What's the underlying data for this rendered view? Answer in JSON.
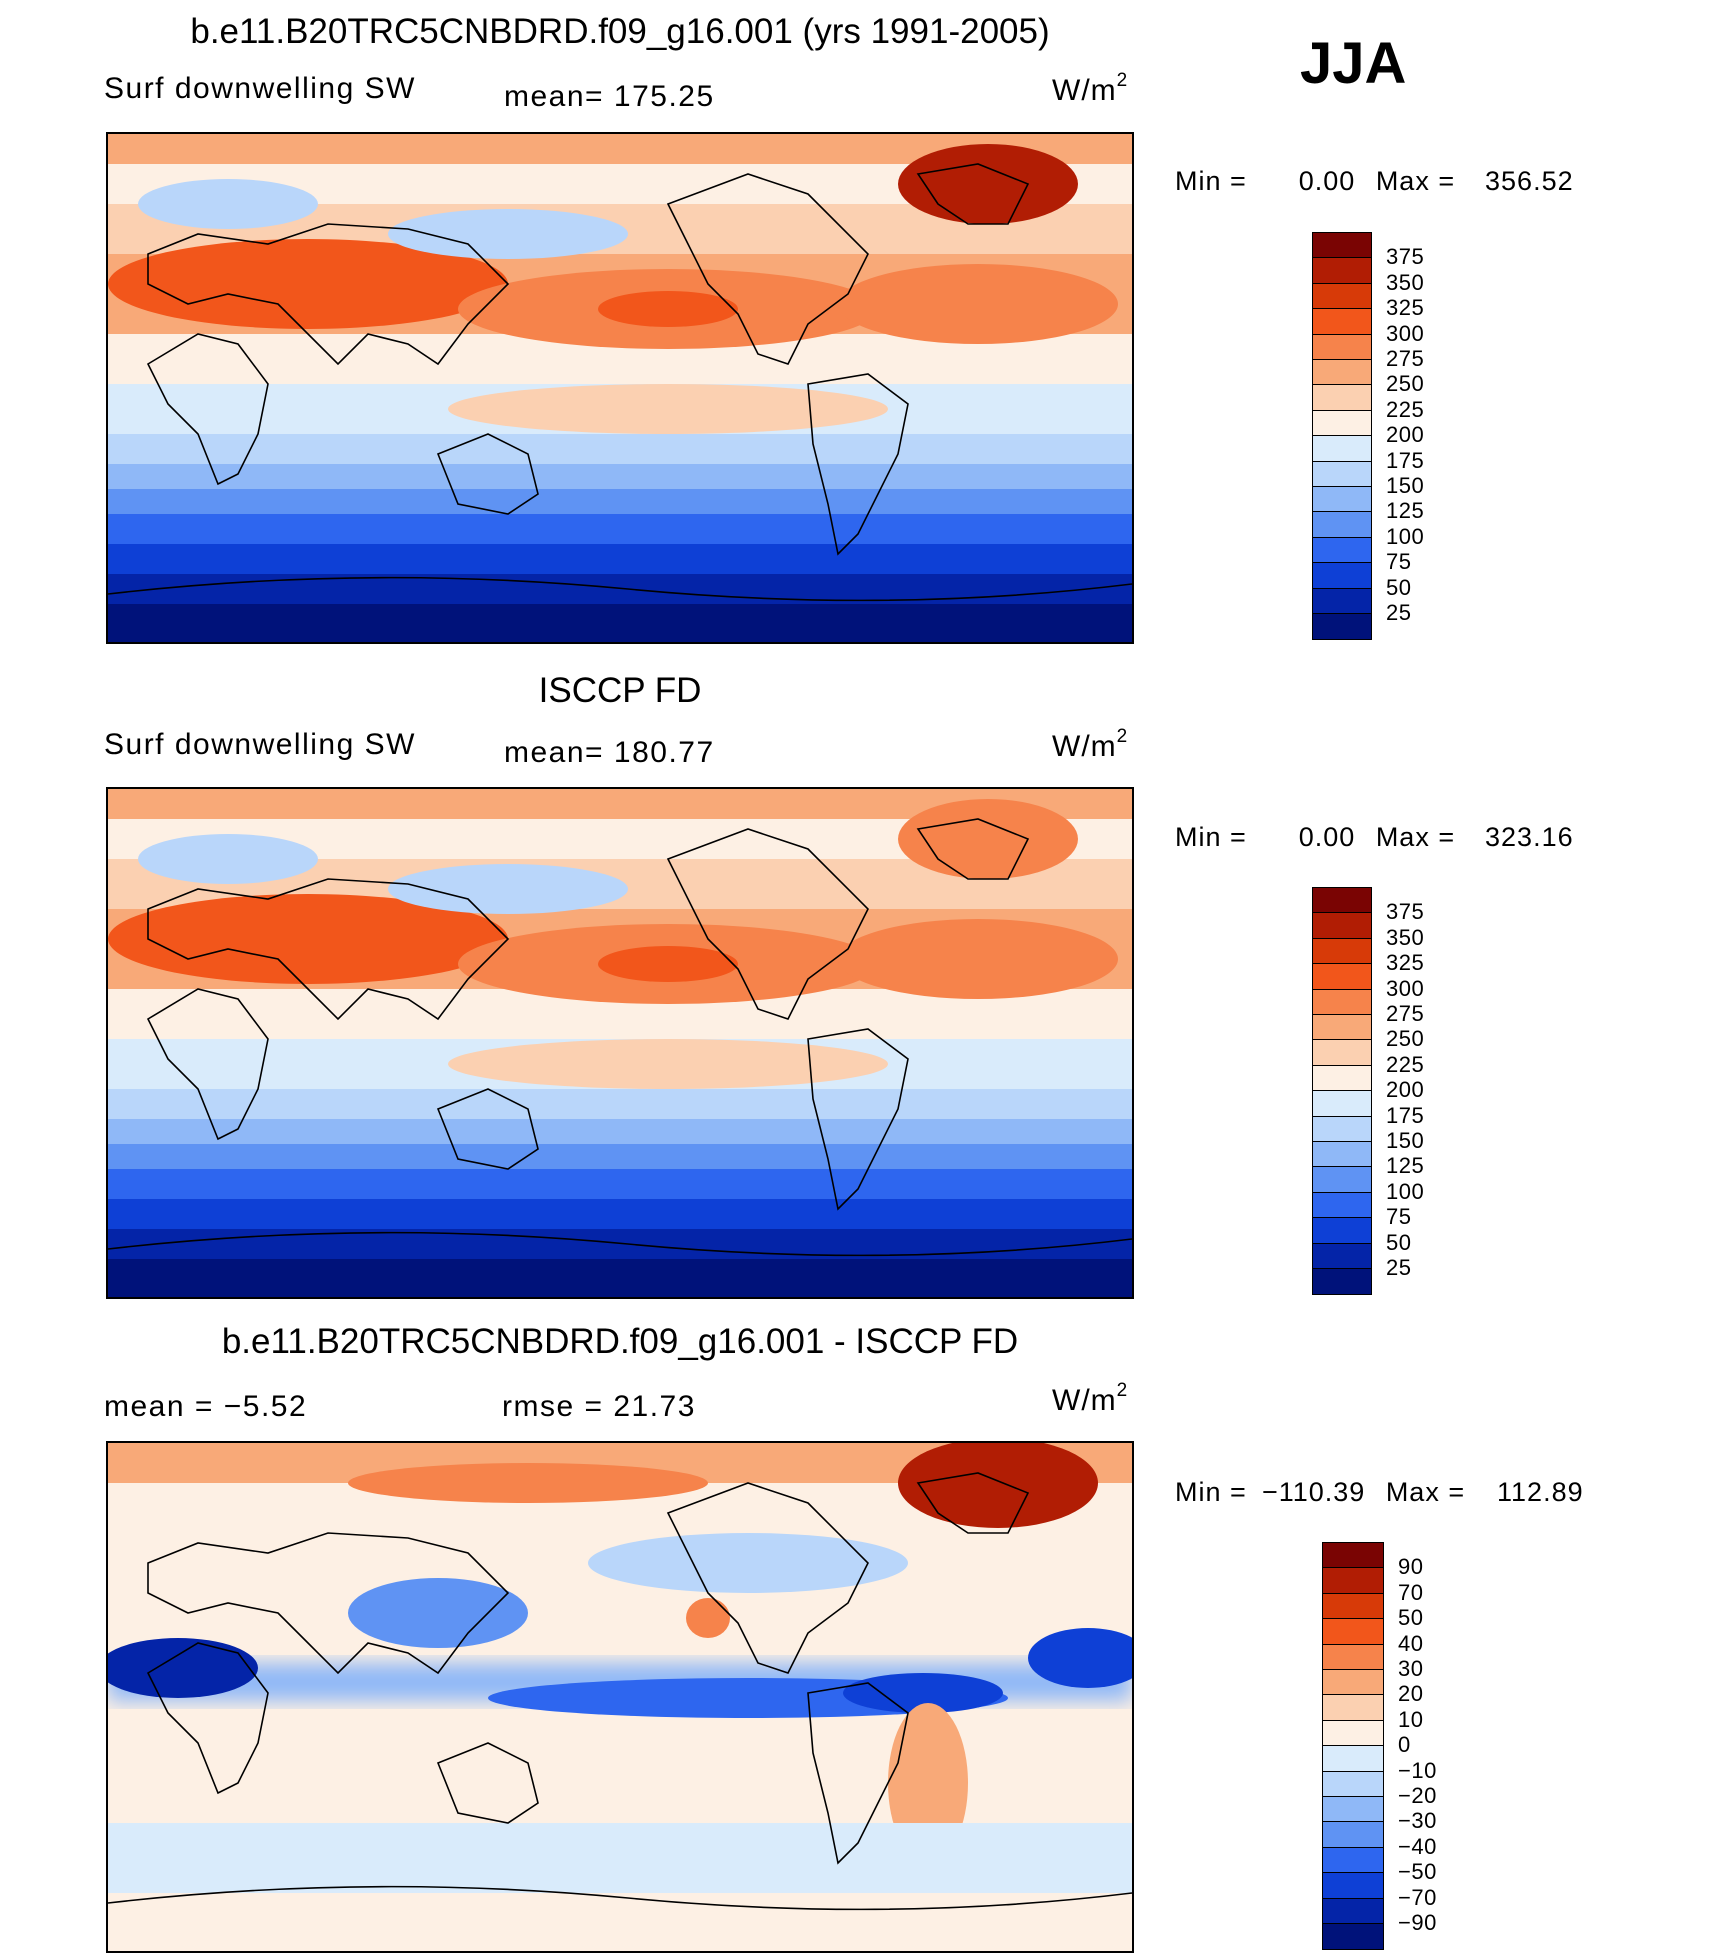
{
  "season": "JJA",
  "colorbar_sets": {
    "field": {
      "levels": [
        "375",
        "350",
        "325",
        "300",
        "275",
        "250",
        "225",
        "200",
        "175",
        "150",
        "125",
        "100",
        "75",
        "50",
        "25"
      ],
      "colors": [
        "#7a0403",
        "#b11d04",
        "#d73a08",
        "#f2561b",
        "#f6834b",
        "#f8a978",
        "#fbd0b1",
        "#fdf0e4",
        "#d9ebfb",
        "#b9d6fa",
        "#8fb8f7",
        "#5f93f3",
        "#2e66ef",
        "#0e40d6",
        "#0424a8",
        "#00127a"
      ]
    },
    "diff": {
      "levels": [
        "90",
        "70",
        "50",
        "40",
        "30",
        "20",
        "10",
        "0",
        "−10",
        "−20",
        "−30",
        "−40",
        "−50",
        "−70",
        "−90"
      ],
      "colors": [
        "#7a0403",
        "#b11d04",
        "#d73a08",
        "#f2561b",
        "#f6834b",
        "#f8a978",
        "#fbd0b1",
        "#fdf0e4",
        "#d9ebfb",
        "#b9d6fa",
        "#8fb8f7",
        "#5f93f3",
        "#2e66ef",
        "#0e40d6",
        "#0424a8",
        "#00127a"
      ]
    }
  },
  "chart_data": [
    {
      "type": "heatmap",
      "id": "model",
      "title": "b.e11.B20TRC5CNBDRD.f09_g16.001 (yrs 1991-2005)",
      "variable": "Surf downwelling SW",
      "stat_text": "mean=  175.25",
      "units_base": "W/m",
      "units_exp": "2",
      "mean": 175.25,
      "min_label": "Min  =",
      "min_value": "0.00",
      "max_label": "Max  =",
      "max_value": "356.52",
      "colorbar": "field"
    },
    {
      "type": "heatmap",
      "id": "obs",
      "title": "ISCCP FD",
      "variable": "Surf downwelling SW",
      "stat_text": "mean=  180.77",
      "units_base": "W/m",
      "units_exp": "2",
      "mean": 180.77,
      "min_label": "Min  =",
      "min_value": "0.00",
      "max_label": "Max  =",
      "max_value": "323.16",
      "colorbar": "field"
    },
    {
      "type": "heatmap",
      "id": "diff",
      "title": "b.e11.B20TRC5CNBDRD.f09_g16.001 - ISCCP FD",
      "mean_text": "mean  =    −5.52",
      "rmse_text": "rmse  =    21.73",
      "mean": -5.52,
      "rmse": 21.73,
      "units_base": "W/m",
      "units_exp": "2",
      "min_label": "Min  =",
      "min_value": "−110.39",
      "max_label": "Max  =",
      "max_value": "112.89",
      "colorbar": "diff"
    }
  ]
}
